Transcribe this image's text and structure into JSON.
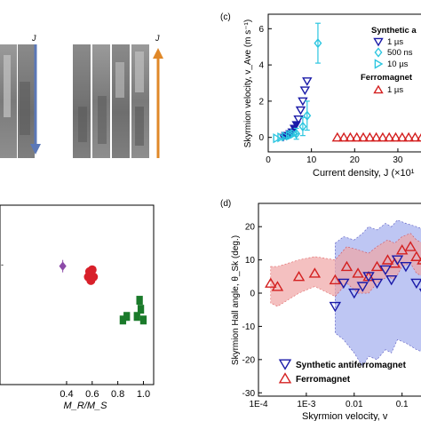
{
  "panels": {
    "topleft": {
      "arrow_label_1": "J",
      "arrow_label_2": "J"
    },
    "c": {
      "letter": "(c)"
    },
    "d": {
      "letter": "(d)"
    },
    "bottomleft": {}
  },
  "colors": {
    "saf_blue": "#1a1aa8",
    "saf_light_blue": "#1f6fd6",
    "saf_cyan": "#2cc6e0",
    "ferro_red": "#d42020",
    "purple": "#8c4aa8",
    "red_dot": "#d8202a",
    "green": "#1a7a2a",
    "arrow_blue": "#5b78b8",
    "arrow_orange": "#e08828"
  },
  "chart_data": [
    {
      "id": "c",
      "type": "scatter",
      "xlabel": "Current density, J (×10¹",
      "ylabel": "Skyrmion velocity, v_Ave (m s⁻¹)",
      "xlim": [
        0,
        37
      ],
      "ylim": [
        -0.8,
        6.8
      ],
      "xticks": [
        0,
        10,
        20,
        30
      ],
      "yticks": [
        0,
        2,
        4,
        6
      ],
      "legend": {
        "group1_title": "Synthetic a",
        "group2_title": "Ferromagnet",
        "items": [
          {
            "name": "1 µs",
            "marker": "triangle-down",
            "color": "#1a1aa8"
          },
          {
            "name": "500 ns",
            "marker": "diamond",
            "color": "#2cc6e0"
          },
          {
            "name": "10 µs",
            "marker": "triangle-right",
            "color": "#2cc6e0"
          },
          {
            "name": "1 µs",
            "marker": "triangle-up",
            "color": "#d42020"
          }
        ]
      },
      "series": [
        {
          "group": "saf_1us",
          "marker": "triangle-down",
          "color": "#1a1aa8",
          "x": [
            3.5,
            4.0,
            4.5,
            5.0,
            5.5,
            6.0,
            6.5,
            7.0,
            7.5,
            8.0,
            8.5,
            9.0
          ],
          "y": [
            0.0,
            0.1,
            0.1,
            0.2,
            0.3,
            0.5,
            0.7,
            1.0,
            1.5,
            2.0,
            2.6,
            3.1
          ]
        },
        {
          "group": "saf_500ns",
          "marker": "diamond",
          "color": "#2cc6e0",
          "x": [
            6.5,
            8.0,
            9.0,
            11.5
          ],
          "y": [
            0.2,
            0.6,
            1.2,
            5.2
          ],
          "yerr": [
            0.3,
            0.5,
            0.8,
            1.1
          ]
        },
        {
          "group": "saf_10us",
          "marker": "triangle-right",
          "color": "#2cc6e0",
          "x": [
            2.0,
            3.0,
            4.0,
            5.0,
            5.5,
            6.0
          ],
          "y": [
            -0.05,
            0.0,
            0.05,
            0.1,
            0.15,
            0.2
          ]
        },
        {
          "group": "ferro_1us",
          "marker": "triangle-up",
          "color": "#d42020",
          "x": [
            16,
            17.5,
            19,
            20.5,
            22,
            23.5,
            25,
            26.5,
            28,
            29.5,
            31,
            32.5,
            34,
            35.5
          ],
          "y": [
            0,
            0,
            0,
            0,
            0,
            0,
            0,
            0,
            0,
            0,
            0,
            0,
            0,
            0
          ]
        }
      ]
    },
    {
      "id": "d",
      "type": "scatter",
      "xlabel": "Skyrmion velocity, v",
      "ylabel": "Skyrmion Hall angle, θ_Sk (deg.)",
      "xscale": "log",
      "xlim": [
        0.0001,
        0.35
      ],
      "ylim": [
        -31,
        27
      ],
      "xtick_labels": [
        "1E-4",
        "1E-3",
        "0.01",
        "0.1"
      ],
      "yticks": [
        -30,
        -20,
        -10,
        0,
        10,
        20
      ],
      "legend": {
        "items": [
          {
            "name": "Synthetic  antiferromagnet",
            "marker": "triangle-down",
            "color": "#1a1aa8"
          },
          {
            "name": "Ferromagnet",
            "marker": "triangle-up",
            "color": "#d42020"
          }
        ]
      },
      "series": [
        {
          "group": "ferromagnet",
          "marker": "triangle-up",
          "color": "#d42020",
          "x": [
            0.00018,
            0.00025,
            0.0007,
            0.0015,
            0.004,
            0.007,
            0.012,
            0.02,
            0.03,
            0.05,
            0.07,
            0.1,
            0.15,
            0.2,
            0.27
          ],
          "y": [
            3,
            2,
            5,
            6,
            4,
            8,
            6,
            5,
            8,
            10,
            9,
            13,
            14,
            11,
            10
          ],
          "band_upper": [
            8,
            8,
            10,
            11,
            10,
            14,
            13,
            12,
            14,
            16,
            15,
            17,
            18,
            16,
            15
          ],
          "band_lower": [
            -3,
            -4,
            0,
            2,
            -1,
            3,
            0,
            0,
            3,
            5,
            4,
            8,
            9,
            6,
            5
          ]
        },
        {
          "group": "saf",
          "marker": "triangle-down",
          "color": "#1a1aa8",
          "x": [
            0.004,
            0.006,
            0.01,
            0.015,
            0.02,
            0.03,
            0.045,
            0.06,
            0.08,
            0.12,
            0.2,
            0.3
          ],
          "y": [
            -4,
            3,
            0,
            2,
            5,
            3,
            7,
            4,
            10,
            8,
            3,
            0
          ],
          "band_upper": [
            15,
            17,
            16,
            18,
            20,
            19,
            21,
            20,
            22,
            21,
            20,
            19
          ],
          "band_lower": [
            -12,
            -14,
            -18,
            -22,
            -19,
            -20,
            -17,
            -18,
            -14,
            -15,
            -17,
            -18
          ]
        }
      ]
    },
    {
      "id": "bottomleft",
      "type": "scatter",
      "xlabel": "M_R/M_S",
      "xlim": [
        -0.12,
        1.08
      ],
      "ylim": [
        0,
        1
      ],
      "xticks": [
        0.4,
        0.6,
        0.8,
        1.0
      ],
      "xtick_labels": [
        "0.4",
        "0.6",
        "0.8",
        "1.0"
      ],
      "series": [
        {
          "group": "purple",
          "marker": "diamond",
          "color": "#8c4aa8",
          "x": [
            0.37
          ],
          "y": [
            0.66
          ]
        },
        {
          "group": "red",
          "marker": "circle",
          "color": "#d8202a",
          "x": [
            0.57,
            0.59,
            0.61,
            0.58,
            0.6
          ],
          "y": [
            0.6,
            0.58,
            0.6,
            0.63,
            0.64
          ]
        },
        {
          "group": "green",
          "marker": "square",
          "color": "#1a7a2a",
          "x": [
            0.84,
            0.87,
            0.95,
            0.98,
            1.0,
            0.97
          ],
          "y": [
            0.36,
            0.38,
            0.38,
            0.42,
            0.36,
            0.47
          ]
        }
      ]
    }
  ]
}
